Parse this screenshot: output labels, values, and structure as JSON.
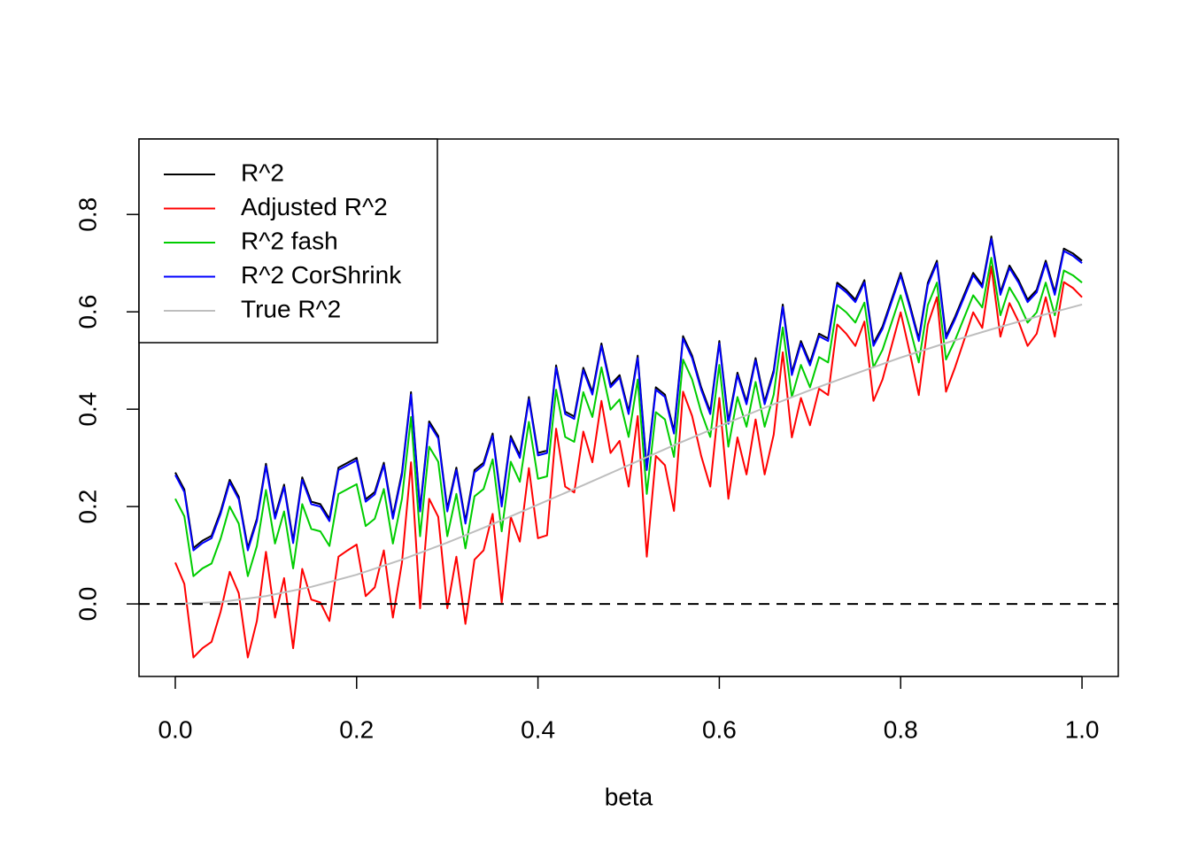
{
  "chart_data": {
    "type": "line",
    "xlabel": "beta",
    "x": [
      0,
      0.01,
      0.02,
      0.03,
      0.04,
      0.05,
      0.06,
      0.07,
      0.08,
      0.09,
      0.1,
      0.11,
      0.12,
      0.13,
      0.14,
      0.15,
      0.16,
      0.17,
      0.18,
      0.19,
      0.2,
      0.21,
      0.22,
      0.23,
      0.24,
      0.25,
      0.26,
      0.27,
      0.28,
      0.29,
      0.3,
      0.31,
      0.32,
      0.33,
      0.34,
      0.35,
      0.36,
      0.37,
      0.38,
      0.39,
      0.4,
      0.41,
      0.42,
      0.43,
      0.44,
      0.45,
      0.46,
      0.47,
      0.48,
      0.49,
      0.5,
      0.51,
      0.52,
      0.53,
      0.54,
      0.55,
      0.56,
      0.57,
      0.58,
      0.59,
      0.6,
      0.61,
      0.62,
      0.63,
      0.64,
      0.65,
      0.66,
      0.67,
      0.68,
      0.69,
      0.7,
      0.71,
      0.72,
      0.73,
      0.74,
      0.75,
      0.76,
      0.77,
      0.78,
      0.79,
      0.8,
      0.81,
      0.82,
      0.83,
      0.84,
      0.85,
      0.86,
      0.87,
      0.88,
      0.89,
      0.9,
      0.91,
      0.92,
      0.93,
      0.94,
      0.95,
      0.96,
      0.97,
      0.98,
      0.99,
      1
    ],
    "series": [
      {
        "name": "R^2",
        "color": "#000000",
        "values": [
          0.27,
          0.235,
          0.115,
          0.13,
          0.14,
          0.19,
          0.255,
          0.22,
          0.115,
          0.175,
          0.288,
          0.18,
          0.245,
          0.13,
          0.26,
          0.21,
          0.205,
          0.175,
          0.28,
          0.29,
          0.3,
          0.215,
          0.23,
          0.29,
          0.18,
          0.27,
          0.435,
          0.195,
          0.375,
          0.345,
          0.195,
          0.28,
          0.17,
          0.275,
          0.29,
          0.35,
          0.205,
          0.345,
          0.305,
          0.425,
          0.31,
          0.315,
          0.49,
          0.395,
          0.385,
          0.485,
          0.435,
          0.535,
          0.45,
          0.47,
          0.395,
          0.51,
          0.28,
          0.445,
          0.43,
          0.355,
          0.55,
          0.51,
          0.445,
          0.395,
          0.54,
          0.375,
          0.475,
          0.415,
          0.505,
          0.415,
          0.48,
          0.615,
          0.475,
          0.54,
          0.495,
          0.555,
          0.545,
          0.66,
          0.645,
          0.625,
          0.665,
          0.535,
          0.57,
          0.625,
          0.68,
          0.615,
          0.545,
          0.66,
          0.705,
          0.55,
          0.59,
          0.635,
          0.68,
          0.655,
          0.755,
          0.64,
          0.695,
          0.665,
          0.625,
          0.645,
          0.705,
          0.64,
          0.73,
          0.72,
          0.705
        ]
      },
      {
        "name": "Adjusted R^2",
        "color": "#ff0000",
        "values": [
          0.085,
          0.041,
          -0.11,
          -0.091,
          -0.078,
          -0.016,
          0.066,
          0.022,
          -0.11,
          -0.035,
          0.107,
          -0.028,
          0.053,
          -0.091,
          0.072,
          0.009,
          0.003,
          -0.035,
          0.097,
          0.11,
          0.122,
          0.016,
          0.034,
          0.11,
          -0.028,
          0.085,
          0.291,
          -0.009,
          0.216,
          0.179,
          -0.009,
          0.097,
          -0.041,
          0.091,
          0.11,
          0.185,
          0.003,
          0.179,
          0.128,
          0.279,
          0.135,
          0.141,
          0.36,
          0.241,
          0.229,
          0.354,
          0.291,
          0.417,
          0.31,
          0.335,
          0.241,
          0.386,
          0.097,
          0.304,
          0.285,
          0.191,
          0.436,
          0.386,
          0.304,
          0.241,
          0.423,
          0.216,
          0.342,
          0.266,
          0.379,
          0.266,
          0.348,
          0.517,
          0.342,
          0.423,
          0.367,
          0.442,
          0.429,
          0.574,
          0.555,
          0.53,
          0.58,
          0.417,
          0.461,
          0.53,
          0.599,
          0.517,
          0.429,
          0.574,
          0.63,
          0.436,
          0.486,
          0.542,
          0.599,
          0.567,
          0.693,
          0.549,
          0.618,
          0.58,
          0.53,
          0.555,
          0.63,
          0.549,
          0.661,
          0.649,
          0.63
        ]
      },
      {
        "name": "R^2 fash",
        "color": "#00cd00",
        "values": [
          0.216,
          0.18,
          0.057,
          0.073,
          0.083,
          0.134,
          0.2,
          0.165,
          0.057,
          0.119,
          0.234,
          0.124,
          0.19,
          0.073,
          0.205,
          0.154,
          0.149,
          0.119,
          0.226,
          0.236,
          0.246,
          0.16,
          0.175,
          0.236,
          0.124,
          0.216,
          0.384,
          0.139,
          0.323,
          0.292,
          0.139,
          0.226,
          0.114,
          0.221,
          0.236,
          0.297,
          0.149,
          0.292,
          0.251,
          0.374,
          0.257,
          0.262,
          0.44,
          0.343,
          0.333,
          0.435,
          0.384,
          0.486,
          0.399,
          0.42,
          0.343,
          0.461,
          0.226,
          0.394,
          0.379,
          0.302,
          0.502,
          0.461,
          0.394,
          0.343,
          0.491,
          0.323,
          0.425,
          0.364,
          0.456,
          0.364,
          0.43,
          0.568,
          0.425,
          0.491,
          0.445,
          0.507,
          0.496,
          0.614,
          0.599,
          0.578,
          0.619,
          0.486,
          0.522,
          0.578,
          0.634,
          0.568,
          0.496,
          0.614,
          0.66,
          0.502,
          0.542,
          0.588,
          0.634,
          0.609,
          0.711,
          0.593,
          0.65,
          0.619,
          0.578,
          0.599,
          0.66,
          0.593,
          0.685,
          0.675,
          0.66
        ]
      },
      {
        "name": "R^2 CorShrink",
        "color": "#0000ff",
        "values": [
          0.265,
          0.23,
          0.11,
          0.125,
          0.135,
          0.185,
          0.25,
          0.215,
          0.11,
          0.17,
          0.283,
          0.175,
          0.24,
          0.125,
          0.255,
          0.205,
          0.2,
          0.17,
          0.275,
          0.285,
          0.295,
          0.21,
          0.225,
          0.285,
          0.175,
          0.265,
          0.43,
          0.19,
          0.37,
          0.34,
          0.19,
          0.275,
          0.165,
          0.27,
          0.285,
          0.345,
          0.2,
          0.34,
          0.3,
          0.42,
          0.305,
          0.31,
          0.485,
          0.39,
          0.38,
          0.48,
          0.43,
          0.53,
          0.445,
          0.465,
          0.39,
          0.505,
          0.275,
          0.44,
          0.425,
          0.35,
          0.545,
          0.505,
          0.44,
          0.39,
          0.535,
          0.37,
          0.47,
          0.41,
          0.5,
          0.41,
          0.475,
          0.61,
          0.47,
          0.535,
          0.49,
          0.55,
          0.54,
          0.655,
          0.64,
          0.62,
          0.66,
          0.53,
          0.565,
          0.62,
          0.675,
          0.61,
          0.54,
          0.655,
          0.7,
          0.545,
          0.585,
          0.63,
          0.675,
          0.65,
          0.75,
          0.635,
          0.69,
          0.66,
          0.62,
          0.64,
          0.7,
          0.635,
          0.725,
          0.715,
          0.7
        ]
      },
      {
        "name": "True R^2",
        "color": "#bebebe",
        "x": [
          0,
          0.05,
          0.1,
          0.15,
          0.2,
          0.25,
          0.3,
          0.35,
          0.4,
          0.45,
          0.5,
          0.55,
          0.6,
          0.65,
          0.7,
          0.75,
          0.8,
          0.85,
          0.9,
          0.95,
          1
        ],
        "values": [
          0,
          0.004,
          0.016,
          0.035,
          0.06,
          0.091,
          0.126,
          0.164,
          0.204,
          0.244,
          0.285,
          0.326,
          0.365,
          0.403,
          0.439,
          0.473,
          0.506,
          0.536,
          0.564,
          0.59,
          0.615
        ]
      }
    ],
    "hline": 0,
    "xlim": [
      -0.04,
      1.04
    ],
    "ylim": [
      -0.149,
      0.955
    ],
    "xticks": [
      {
        "value": 0,
        "label": "0.0"
      },
      0.2,
      0.4,
      0.6,
      0.8,
      {
        "value": 1,
        "label": "1.0"
      }
    ],
    "yticks": [
      {
        "value": 0,
        "label": "0.0"
      },
      0.2,
      0.4,
      0.6,
      0.8
    ],
    "legend": "topleft"
  }
}
